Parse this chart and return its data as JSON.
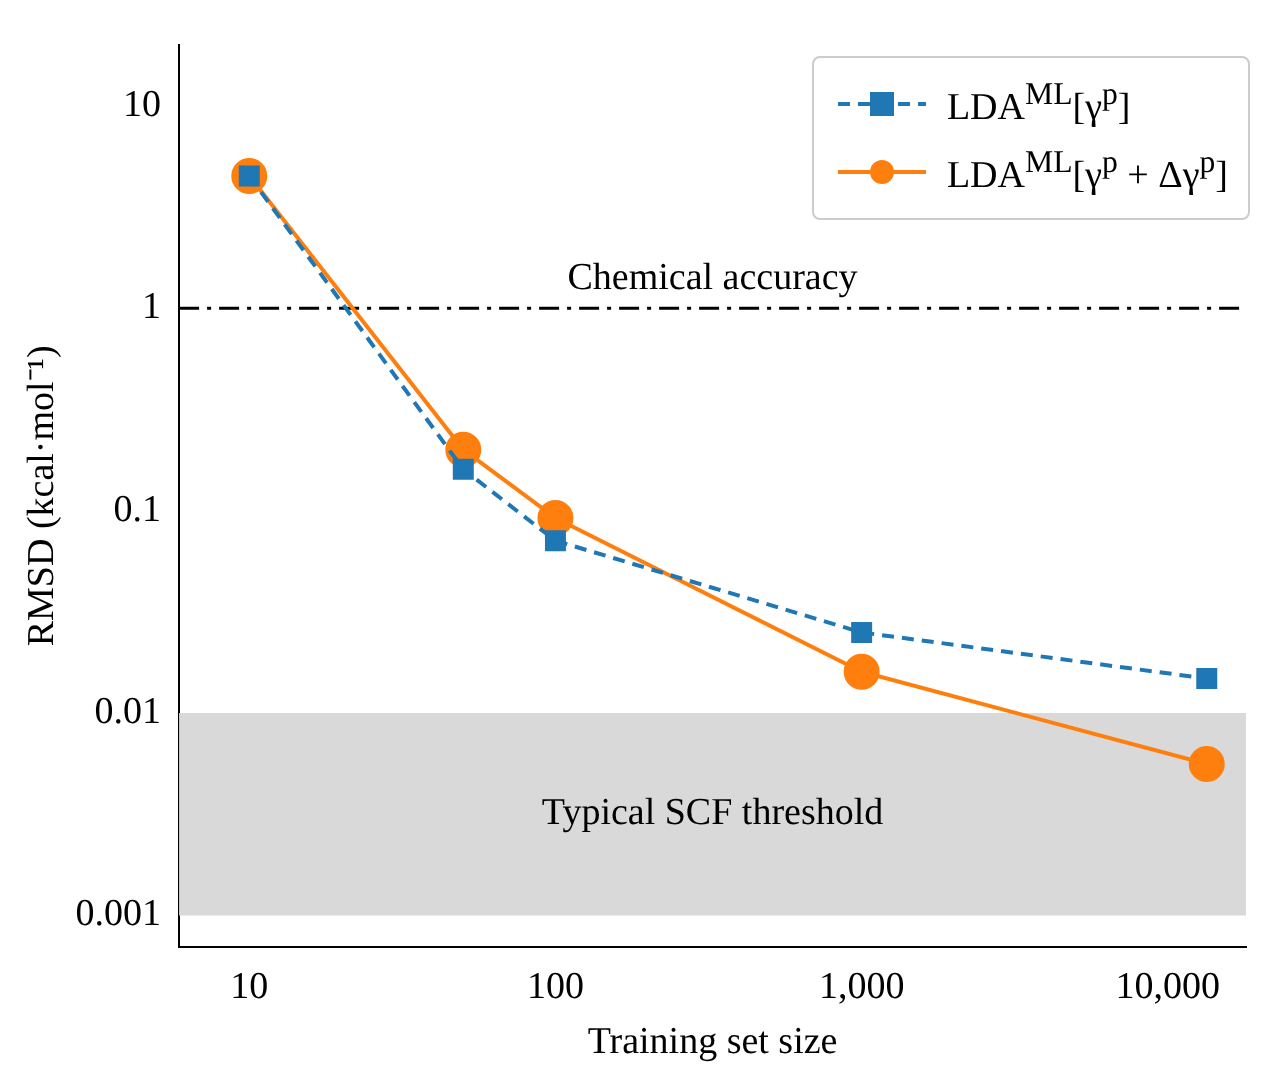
{
  "chart_data": {
    "type": "line",
    "xlabel": "Training set size",
    "ylabel": "RMSD (kcal·mol⁻¹)",
    "log": "xy",
    "grid": false,
    "legend": "top right",
    "xlim": [
      5.9,
      18000
    ],
    "xticks": [
      10,
      100,
      {
        "value": 1000,
        "label": "1,000"
      },
      {
        "value": 10000,
        "label": "10,000"
      }
    ],
    "ylim": [
      0.0007,
      20
    ],
    "yticks": [
      0.001,
      0.01,
      0.1,
      1,
      10
    ],
    "series": [
      {
        "name": "LDA$^{ML}$[γ$^{p}$]",
        "color": "#1f77b4",
        "marker": "square",
        "line_style": "dashed",
        "x": [
          10,
          50,
          100,
          1000,
          13400
        ],
        "values": [
          4.5,
          0.16,
          0.071,
          0.025,
          0.0148
        ]
      },
      {
        "name": "LDA$^{ML}$[γ$^{p}$ + Δγ$^{p}$]",
        "color": "#ff7f0e",
        "marker": "circle",
        "line_style": "solid",
        "x": [
          10,
          50,
          100,
          1000,
          13400
        ],
        "values": [
          4.5,
          0.2,
          0.092,
          0.016,
          0.0056
        ]
      }
    ],
    "ref_lines": [
      {
        "axis": "y",
        "value": 1,
        "label": "Chemical accuracy",
        "color": "#000000",
        "line_style": "dashdot"
      }
    ],
    "bands": [
      {
        "axis": "y",
        "from": 0.001,
        "to": 0.01,
        "label": "Typical SCF threshold",
        "color": "#d9d9d9"
      }
    ]
  }
}
